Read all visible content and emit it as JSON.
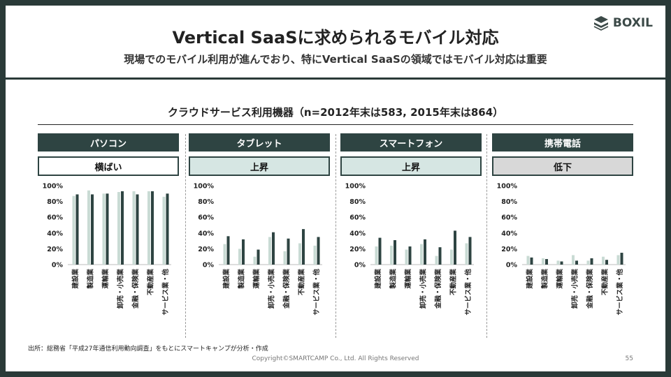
{
  "header": {
    "title": "Vertical SaaSに求められるモバイル対応",
    "subtitle": "現場でのモバイル利用が進んでおり、特にVertical SaaSの領域ではモバイル対応は重要",
    "logo_text": "BOXIL"
  },
  "chart_title": "クラウドサービス利用機器（n=2012年末は583, 2015年末は864）",
  "colors": {
    "dark": "#2e4442",
    "light": "#c9dbd4",
    "trend_flat_bg": "#ffffff",
    "trend_up_bg": "#d6e6e3",
    "trend_down_bg": "#d8d8d8"
  },
  "panels": [
    {
      "name": "パソコン",
      "trend": "横ばい",
      "trend_style": "flat"
    },
    {
      "name": "タブレット",
      "trend": "上昇",
      "trend_style": "up"
    },
    {
      "name": "スマートフォン",
      "trend": "上昇",
      "trend_style": "up"
    },
    {
      "name": "携帯電話",
      "trend": "低下",
      "trend_style": "down"
    }
  ],
  "chart_data": [
    {
      "type": "bar",
      "title": "パソコン",
      "categories": [
        "建設業",
        "製造業",
        "運輸業",
        "卸売・小売業",
        "金融・保険業",
        "不動産業",
        "サービス業・他"
      ],
      "series": [
        {
          "values": [
            87,
            94,
            90,
            92,
            93,
            93,
            86
          ]
        },
        {
          "values": [
            89,
            89,
            90,
            93,
            89,
            93,
            90
          ]
        }
      ],
      "yticks": [
        "100%",
        "80%",
        "60%",
        "40%",
        "20%",
        "0%"
      ],
      "ylim": [
        0,
        100
      ]
    },
    {
      "type": "bar",
      "title": "タブレット",
      "categories": [
        "建設業",
        "製造業",
        "運輸業",
        "卸売・小売業",
        "金融・保険業",
        "不動産業",
        "サービス業・他"
      ],
      "series": [
        {
          "values": [
            26,
            20,
            10,
            35,
            17,
            27,
            24
          ]
        },
        {
          "values": [
            36,
            32,
            19,
            41,
            33,
            45,
            35
          ]
        }
      ],
      "yticks": [
        "100%",
        "80%",
        "60%",
        "40%",
        "20%",
        "0%"
      ],
      "ylim": [
        0,
        100
      ]
    },
    {
      "type": "bar",
      "title": "スマートフォン",
      "categories": [
        "建設業",
        "製造業",
        "運輸業",
        "卸売・小売業",
        "金融・保険業",
        "不動産業",
        "サービス業・他"
      ],
      "series": [
        {
          "values": [
            23,
            24,
            19,
            26,
            11,
            19,
            27
          ]
        },
        {
          "values": [
            34,
            31,
            23,
            32,
            22,
            43,
            35
          ]
        }
      ],
      "yticks": [
        "100%",
        "80%",
        "60%",
        "40%",
        "20%",
        "0%"
      ],
      "ylim": [
        0,
        100
      ]
    },
    {
      "type": "bar",
      "title": "携帯電話",
      "categories": [
        "建設業",
        "製造業",
        "運輸業",
        "卸売・小売業",
        "金融・保険業",
        "不動産業",
        "サービス業・他"
      ],
      "series": [
        {
          "values": [
            11,
            8,
            5,
            12,
            5,
            10,
            12
          ]
        },
        {
          "values": [
            9,
            7,
            4,
            5,
            8,
            6,
            15
          ]
        }
      ],
      "yticks": [
        "100%",
        "80%",
        "60%",
        "40%",
        "20%",
        "0%"
      ],
      "ylim": [
        0,
        100
      ]
    }
  ],
  "footer": {
    "source": "出所：総務省「平成27年通信利用動向調査」をもとにスマートキャンプが分析・作成",
    "copyright": "Copyright©SMARTCAMP Co., Ltd. All Rights Reserved",
    "page": "55"
  }
}
